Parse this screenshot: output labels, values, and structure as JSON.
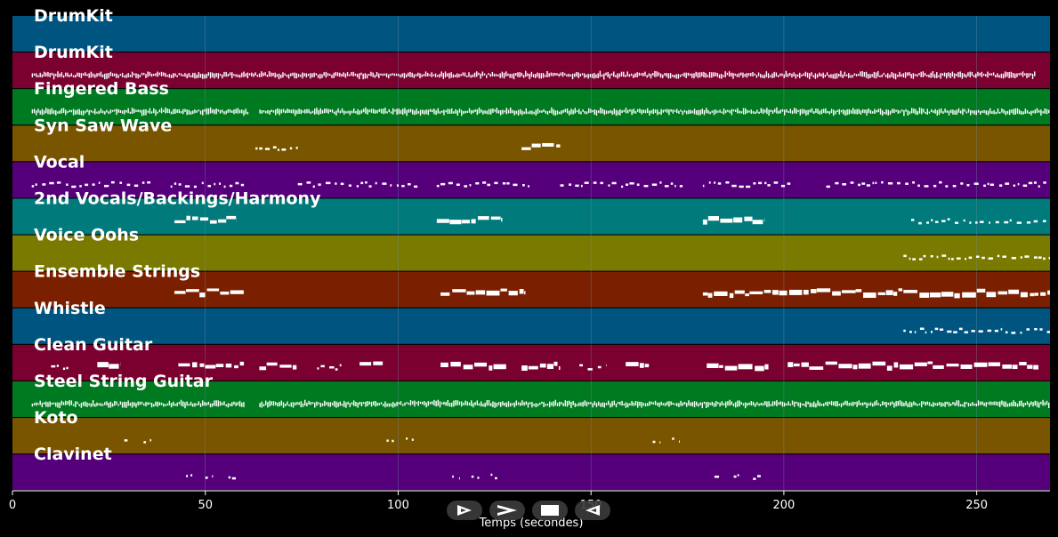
{
  "colors": {
    "background": "#000000",
    "note": "#ffffff",
    "grid": "#6f8fa8"
  },
  "timeline": {
    "xlim": [
      0,
      269
    ],
    "ticks": [
      0,
      50,
      100,
      150,
      200,
      250
    ],
    "tick_labels": [
      "0",
      "50",
      "100",
      "150",
      "200",
      "250"
    ],
    "axis_title": "Temps (secondes)"
  },
  "tracks": [
    {
      "name": "DrumKit",
      "color": "#005580",
      "notes": []
    },
    {
      "name": "DrumKit",
      "color": "#7a0030",
      "notes": [
        [
          5,
          265,
          "dense"
        ]
      ]
    },
    {
      "name": "Fingered Bass",
      "color": "#007a20",
      "notes": [
        [
          5,
          61,
          "dense"
        ],
        [
          64,
          269,
          "dense"
        ]
      ]
    },
    {
      "name": "Syn Saw Wave",
      "color": "#7a5500",
      "notes": [
        [
          63,
          74,
          "sparse"
        ],
        [
          132,
          142,
          "block"
        ]
      ]
    },
    {
      "name": "Vocal",
      "color": "#55007a",
      "notes": [
        [
          5,
          36,
          "sparse"
        ],
        [
          41,
          60,
          "sparse"
        ],
        [
          74,
          106,
          "sparse"
        ],
        [
          110,
          135,
          "sparse"
        ],
        [
          142,
          174,
          "sparse"
        ],
        [
          179,
          202,
          "sparse"
        ],
        [
          211,
          269,
          "sparse"
        ]
      ]
    },
    {
      "name": "2nd Vocals/Backings/Harmony",
      "color": "#007a7a",
      "notes": [
        [
          42,
          58,
          "block"
        ],
        [
          110,
          127,
          "block"
        ],
        [
          179,
          195,
          "block"
        ],
        [
          233,
          269,
          "sparse"
        ]
      ]
    },
    {
      "name": "Voice Oohs",
      "color": "#7a7a00",
      "notes": [
        [
          231,
          269,
          "sparse"
        ]
      ]
    },
    {
      "name": "Ensemble Strings",
      "color": "#7a2000",
      "notes": [
        [
          42,
          60,
          "block"
        ],
        [
          111,
          133,
          "block"
        ],
        [
          179,
          269,
          "block"
        ]
      ]
    },
    {
      "name": "Whistle",
      "color": "#005580",
      "notes": [
        [
          231,
          269,
          "sparse"
        ]
      ]
    },
    {
      "name": "Clean Guitar",
      "color": "#7a0030",
      "notes": [
        [
          10,
          15,
          "sparse"
        ],
        [
          22,
          28,
          "block"
        ],
        [
          43,
          60,
          "block"
        ],
        [
          64,
          74,
          "block"
        ],
        [
          79,
          86,
          "sparse"
        ],
        [
          90,
          96,
          "block"
        ],
        [
          111,
          128,
          "block"
        ],
        [
          132,
          142,
          "block"
        ],
        [
          147,
          154,
          "sparse"
        ],
        [
          159,
          165,
          "block"
        ],
        [
          180,
          196,
          "block"
        ],
        [
          201,
          266,
          "block"
        ]
      ]
    },
    {
      "name": "Steel String Guitar",
      "color": "#007a20",
      "notes": [
        [
          5,
          60,
          "dense"
        ],
        [
          64,
          269,
          "dense"
        ]
      ]
    },
    {
      "name": "Koto",
      "color": "#7a5500",
      "notes": [
        [
          29,
          31,
          "sparse"
        ],
        [
          34,
          36,
          "sparse"
        ],
        [
          97,
          99,
          "sparse"
        ],
        [
          102,
          104,
          "sparse"
        ],
        [
          166,
          168,
          "sparse"
        ],
        [
          171,
          173,
          "sparse"
        ]
      ]
    },
    {
      "name": "Clavinet",
      "color": "#55007a",
      "notes": [
        [
          45,
          47,
          "sparse"
        ],
        [
          50,
          52,
          "sparse"
        ],
        [
          56,
          58,
          "sparse"
        ],
        [
          114,
          116,
          "sparse"
        ],
        [
          119,
          121,
          "sparse"
        ],
        [
          124,
          126,
          "sparse"
        ],
        [
          182,
          184,
          "sparse"
        ],
        [
          187,
          189,
          "sparse"
        ],
        [
          192,
          194,
          "sparse"
        ]
      ]
    }
  ],
  "controls": [
    {
      "name": "play-button",
      "icon": "play-outline-icon"
    },
    {
      "name": "forward-button",
      "icon": "chevron-right-icon"
    },
    {
      "name": "stop-button",
      "icon": "stop-icon"
    },
    {
      "name": "rewind-button",
      "icon": "rewind-icon"
    }
  ]
}
